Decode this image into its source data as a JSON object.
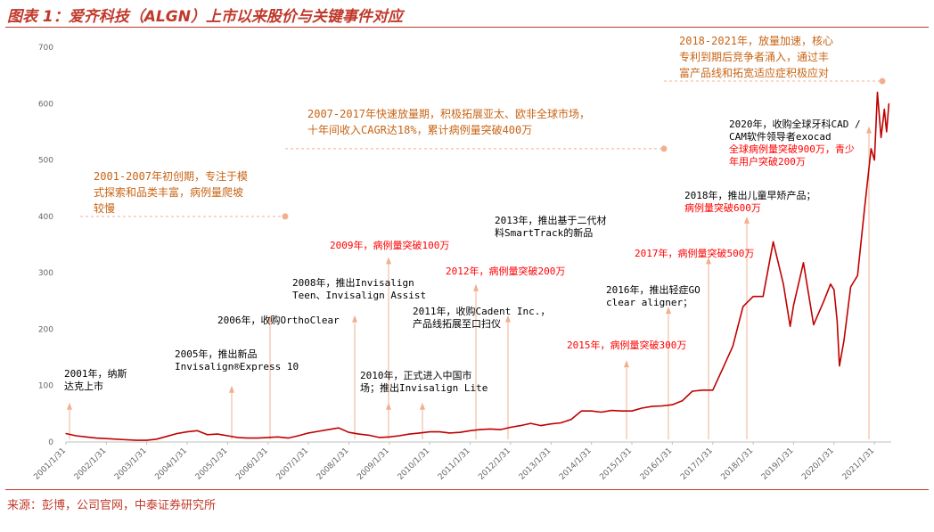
{
  "title": "图表 1：爱齐科技（ALGN）上市以来股价与关键事件对应",
  "source": "来源：彭博，公司官网，中泰证券研究所",
  "colors": {
    "accent": "#c0392b",
    "line": "#c00000",
    "phase_text": "#c86414",
    "red_text": "#ff0000",
    "black_text": "#000000",
    "leader": "#f0b090"
  },
  "chart_data": {
    "type": "line",
    "ylim": [
      0,
      700
    ],
    "yticks": [
      0,
      100,
      200,
      300,
      400,
      500,
      600,
      700
    ],
    "xlabels": [
      "2001/1/31",
      "2002/1/31",
      "2003/1/31",
      "2004/1/31",
      "2005/1/31",
      "2006/1/31",
      "2007/1/31",
      "2008/1/31",
      "2009/1/31",
      "2010/1/31",
      "2011/1/31",
      "2012/1/31",
      "2013/1/31",
      "2014/1/31",
      "2015/1/31",
      "2016/1/31",
      "2017/1/31",
      "2018/1/31",
      "2019/1/31",
      "2020/1/31",
      "2021/1/31"
    ],
    "series": [
      {
        "points": [
          [
            "2001-01-31",
            15
          ],
          [
            "2001-04-30",
            11
          ],
          [
            "2001-07-31",
            9
          ],
          [
            "2001-10-31",
            7
          ],
          [
            "2002-01-31",
            6
          ],
          [
            "2002-04-30",
            5
          ],
          [
            "2002-07-31",
            4
          ],
          [
            "2002-10-31",
            3
          ],
          [
            "2003-01-31",
            3
          ],
          [
            "2003-04-30",
            5
          ],
          [
            "2003-07-31",
            10
          ],
          [
            "2003-10-31",
            15
          ],
          [
            "2004-01-31",
            18
          ],
          [
            "2004-04-30",
            20
          ],
          [
            "2004-07-31",
            13
          ],
          [
            "2004-10-31",
            14
          ],
          [
            "2005-01-31",
            11
          ],
          [
            "2005-04-30",
            8
          ],
          [
            "2005-07-31",
            7
          ],
          [
            "2005-10-31",
            7
          ],
          [
            "2006-01-31",
            8
          ],
          [
            "2006-04-30",
            9
          ],
          [
            "2006-07-31",
            7
          ],
          [
            "2006-10-31",
            11
          ],
          [
            "2007-01-31",
            16
          ],
          [
            "2007-04-30",
            19
          ],
          [
            "2007-07-31",
            22
          ],
          [
            "2007-10-31",
            25
          ],
          [
            "2008-01-31",
            17
          ],
          [
            "2008-04-30",
            14
          ],
          [
            "2008-07-31",
            12
          ],
          [
            "2008-10-31",
            8
          ],
          [
            "2009-01-31",
            9
          ],
          [
            "2009-04-30",
            11
          ],
          [
            "2009-07-31",
            14
          ],
          [
            "2009-10-31",
            16
          ],
          [
            "2010-01-31",
            18
          ],
          [
            "2010-04-30",
            18
          ],
          [
            "2010-07-31",
            16
          ],
          [
            "2010-10-31",
            17
          ],
          [
            "2011-01-31",
            20
          ],
          [
            "2011-04-30",
            22
          ],
          [
            "2011-07-31",
            23
          ],
          [
            "2011-10-31",
            22
          ],
          [
            "2012-01-31",
            26
          ],
          [
            "2012-04-30",
            29
          ],
          [
            "2012-07-31",
            33
          ],
          [
            "2012-10-31",
            29
          ],
          [
            "2013-01-31",
            32
          ],
          [
            "2013-04-30",
            34
          ],
          [
            "2013-07-31",
            40
          ],
          [
            "2013-10-31",
            55
          ],
          [
            "2014-01-31",
            55
          ],
          [
            "2014-04-30",
            53
          ],
          [
            "2014-07-31",
            56
          ],
          [
            "2014-10-31",
            55
          ],
          [
            "2015-01-31",
            55
          ],
          [
            "2015-04-30",
            60
          ],
          [
            "2015-07-31",
            63
          ],
          [
            "2015-10-31",
            64
          ],
          [
            "2016-01-31",
            66
          ],
          [
            "2016-04-30",
            73
          ],
          [
            "2016-07-31",
            90
          ],
          [
            "2016-10-31",
            92
          ],
          [
            "2017-01-31",
            92
          ],
          [
            "2017-04-30",
            130
          ],
          [
            "2017-07-31",
            170
          ],
          [
            "2017-10-31",
            240
          ],
          [
            "2018-01-31",
            258
          ],
          [
            "2018-04-30",
            258
          ],
          [
            "2018-07-31",
            355
          ],
          [
            "2018-10-31",
            280
          ],
          [
            "2018-12-31",
            205
          ],
          [
            "2019-01-31",
            243
          ],
          [
            "2019-04-30",
            318
          ],
          [
            "2019-07-31",
            208
          ],
          [
            "2019-10-31",
            250
          ],
          [
            "2019-12-31",
            280
          ],
          [
            "2020-01-31",
            270
          ],
          [
            "2020-02-28",
            215
          ],
          [
            "2020-03-20",
            135
          ],
          [
            "2020-04-30",
            180
          ],
          [
            "2020-06-30",
            275
          ],
          [
            "2020-08-31",
            295
          ],
          [
            "2020-10-31",
            410
          ],
          [
            "2020-12-31",
            520
          ],
          [
            "2021-01-31",
            500
          ],
          [
            "2021-02-26",
            620
          ],
          [
            "2021-03-31",
            540
          ],
          [
            "2021-04-30",
            590
          ],
          [
            "2021-05-20",
            550
          ],
          [
            "2021-06-10",
            600
          ]
        ]
      }
    ]
  },
  "phases": [
    {
      "lines": [
        "2001-2007年初创期，专注于模",
        "式探索和品类丰富，病例量爬坡",
        "较慢"
      ],
      "year": "2007-01-31",
      "level": 400
    },
    {
      "lines": [
        "2007-2017年快速放量期，积极拓展亚太、欧非全球市场，",
        "十年间收入CAGR达18%，累计病例量突破400万"
      ],
      "year": "2007-01-31",
      "level": 520
    },
    {
      "lines": [
        "2018-2021年，放量加速，核心",
        "专利到期后竞争者涌入，通过丰",
        "富产品线和拓宽适应症积极应对"
      ],
      "year": "2016-01-31",
      "level": 640
    }
  ],
  "events": [
    {
      "lines": [
        {
          "t": "2001年，纳斯",
          "c": "black"
        },
        {
          "t": "达克上市",
          "c": "black"
        }
      ],
      "year": "2001-01-31",
      "level": 70
    },
    {
      "lines": [
        {
          "t": "2005年，推出新品",
          "c": "black"
        },
        {
          "t": "Invisalign®Express 10",
          "c": "black"
        }
      ],
      "year": "2005-01-31",
      "level": 100
    },
    {
      "lines": [
        {
          "t": "2006年，收购OrthoClear",
          "c": "black"
        }
      ],
      "year": "2006-01-31",
      "level": 225
    },
    {
      "lines": [
        {
          "t": "2008年，推出Invisalign",
          "c": "black"
        },
        {
          "t": "Teen、Invisalign Assist",
          "c": "black"
        }
      ],
      "year": "2008-01-31",
      "level": 225
    },
    {
      "lines": [
        {
          "t": "2009年，病例量突破100万",
          "c": "red"
        }
      ],
      "year": "2009-01-31",
      "level": 328
    },
    {
      "lines": [
        {
          "t": "2010年，正式进入中国市",
          "c": "black"
        },
        {
          "t": "场；推出Invisalign Lite",
          "c": "black"
        }
      ],
      "year": "2009-01-31",
      "level": 70
    },
    {
      "lines": [
        {
          "t": "2011年，收购Cadent Inc.，",
          "c": "black"
        },
        {
          "t": "产品线拓展至口扫仪",
          "c": "black"
        }
      ],
      "year": "2010-01-31",
      "level": 70
    },
    {
      "lines": [
        {
          "t": "2012年，病例量突破200万",
          "c": "red"
        }
      ],
      "year": "2011-01-31",
      "level": 280
    },
    {
      "lines": [
        {
          "t": "2013年，推出基于二代材",
          "c": "black"
        },
        {
          "t": "料SmartTrack的新品",
          "c": "black"
        }
      ],
      "year": "2012-01-31",
      "level": 225
    },
    {
      "lines": [
        {
          "t": "2015年，病例量突破300万",
          "c": "red"
        }
      ],
      "year": "2015-01-31",
      "level": 145
    },
    {
      "lines": [
        {
          "t": "2016年，推出轻症GO",
          "c": "black"
        },
        {
          "t": "clear aligner；",
          "c": "black"
        }
      ],
      "year": "2016-01-31",
      "level": 240
    },
    {
      "lines": [
        {
          "t": "2017年，病例量突破500万",
          "c": "red"
        }
      ],
      "year": "2017-01-31",
      "level": 328
    },
    {
      "lines": [
        {
          "t": "2018年，推出儿童早矫产品；",
          "c": "black"
        },
        {
          "t": "病例量突破600万",
          "c": "red"
        }
      ],
      "year": "2018-01-31",
      "level": 400
    },
    {
      "lines": [
        {
          "t": "2020年，收购全球牙科CAD /",
          "c": "black"
        },
        {
          "t": "CAM软件领导者exocad",
          "c": "black"
        },
        {
          "t": "全球病例量突破900万，青少",
          "c": "red"
        },
        {
          "t": "年用户突破200万",
          "c": "red"
        }
      ],
      "year": "2020-01-31",
      "level": 560
    }
  ]
}
